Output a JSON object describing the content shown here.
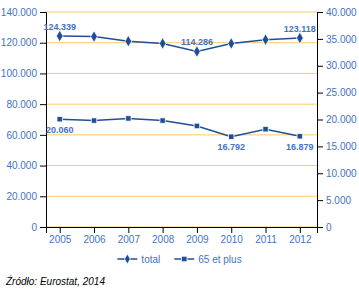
{
  "chart_data": {
    "type": "line",
    "x": [
      2005,
      2006,
      2007,
      2008,
      2009,
      2010,
      2011,
      2012
    ],
    "xlim": [
      2004.6,
      2012.5
    ],
    "xticks": [
      2005,
      2006,
      2007,
      2008,
      2009,
      2010,
      2011,
      2012
    ],
    "ylim": [
      0,
      140000
    ],
    "yticks": [
      0,
      {
        "value": 20000,
        "label": "20.000"
      },
      {
        "value": 40000,
        "label": "40.000"
      },
      {
        "value": 60000,
        "label": "60.000"
      },
      {
        "value": 80000,
        "label": "80.000"
      },
      {
        "value": 100000,
        "label": "100.000"
      },
      {
        "value": 120000,
        "label": "120.000"
      },
      {
        "value": 140000,
        "label": "140.000"
      }
    ],
    "y2lim": [
      0,
      40000
    ],
    "y2ticks": [
      0,
      {
        "value": 5000,
        "label": "5.000"
      },
      {
        "value": 10000,
        "label": "10.000"
      },
      {
        "value": 15000,
        "label": "15.000"
      },
      {
        "value": 20000,
        "label": "20.000"
      },
      {
        "value": 25000,
        "label": "25.000"
      },
      {
        "value": 30000,
        "label": "30.000"
      },
      {
        "value": 35000,
        "label": "35.000"
      },
      {
        "value": 40000,
        "label": "40.000"
      }
    ],
    "grid": true,
    "legend": "bottom",
    "series": [
      {
        "name": "total",
        "color": "#1F4E99",
        "marker": "diamond",
        "values": [
          124339,
          124000,
          121000,
          119500,
          114286,
          119500,
          122000,
          123118
        ]
      },
      {
        "name": "65 et plus",
        "color": "#1F4E99",
        "marker": "square",
        "axis": "y2",
        "values": [
          20060,
          19800,
          20200,
          19800,
          18800,
          16792,
          18200,
          16879
        ]
      }
    ],
    "annotations": [
      {
        "text": "124.339",
        "x": 2005,
        "y": 124339,
        "axis": "y"
      },
      {
        "text": "114.286",
        "x": 2009,
        "y": 114286,
        "axis": "y"
      },
      {
        "text": "123.118",
        "x": 2012,
        "y": 123118,
        "axis": "y"
      },
      {
        "text": "20.060",
        "x": 2005,
        "y": 20060,
        "axis": "y2"
      },
      {
        "text": "16.792",
        "x": 2010,
        "y": 16792,
        "axis": "y2"
      },
      {
        "text": "16.879",
        "x": 2012,
        "y": 16879,
        "axis": "y2"
      }
    ],
    "source": "Źródło: Eurostat, 2014"
  }
}
